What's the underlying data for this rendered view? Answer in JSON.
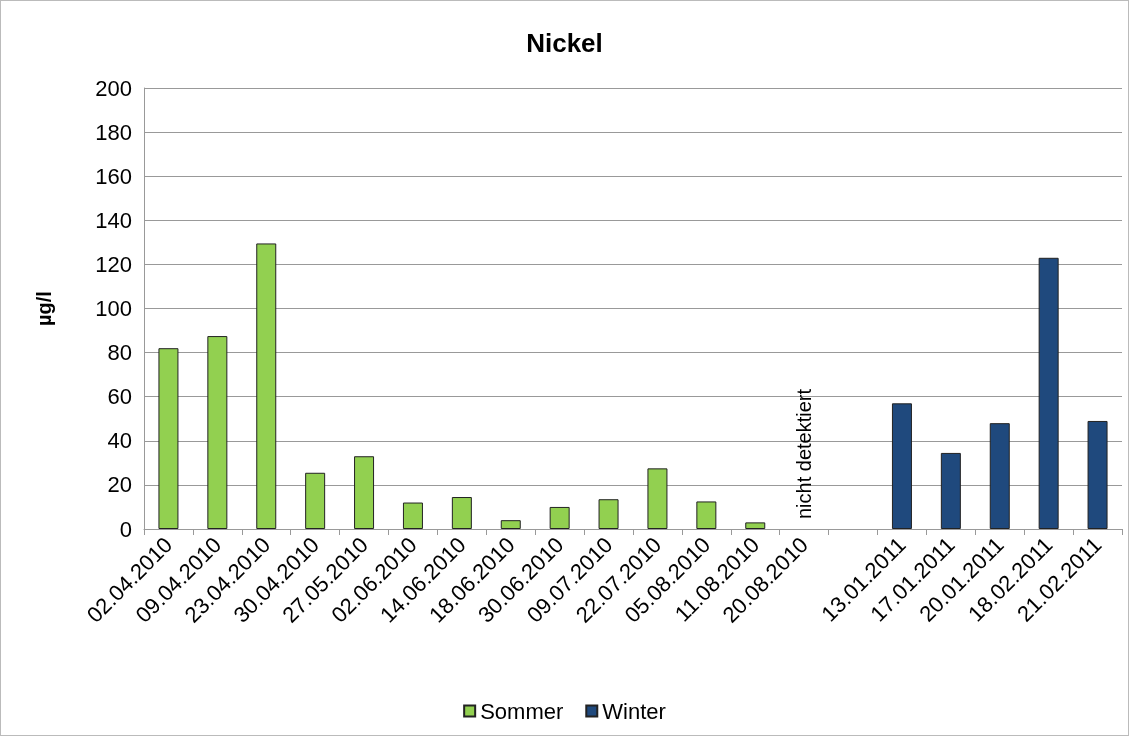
{
  "chart_data": {
    "type": "bar",
    "title": "Nickel",
    "ylabel": "µg/l",
    "categories": [
      "02.04.2010",
      "09.04.2010",
      "23.04.2010",
      "30.04.2010",
      "27.05.2010",
      "02.06.2010",
      "14.06.2010",
      "18.06.2010",
      "30.06.2010",
      "09.07.2010",
      "22.07.2010",
      "05.08.2010",
      "11.08.2010",
      "20.08.2010",
      null,
      "13.01.2011",
      "17.01.2011",
      "20.01.2011",
      "18.02.2011",
      "21.02.2011"
    ],
    "series": [
      {
        "name": "Sommer",
        "color": "#92d050",
        "values": [
          82,
          87.5,
          129.5,
          25.5,
          33,
          12,
          14.5,
          4,
          10,
          13.5,
          27.5,
          12.5,
          3,
          null,
          null,
          null,
          null,
          null,
          null,
          null
        ]
      },
      {
        "name": "Winter",
        "color": "#1f497d",
        "values": [
          null,
          null,
          null,
          null,
          null,
          null,
          null,
          null,
          null,
          null,
          null,
          null,
          null,
          null,
          null,
          57,
          34.5,
          48,
          123,
          49
        ]
      }
    ],
    "ylim": [
      0,
      200
    ],
    "yticks": [
      0,
      20,
      40,
      60,
      80,
      100,
      120,
      140,
      160,
      180,
      200
    ],
    "grid": "y",
    "legend": "bottom",
    "annotations": [
      "nicht detektiert"
    ]
  }
}
